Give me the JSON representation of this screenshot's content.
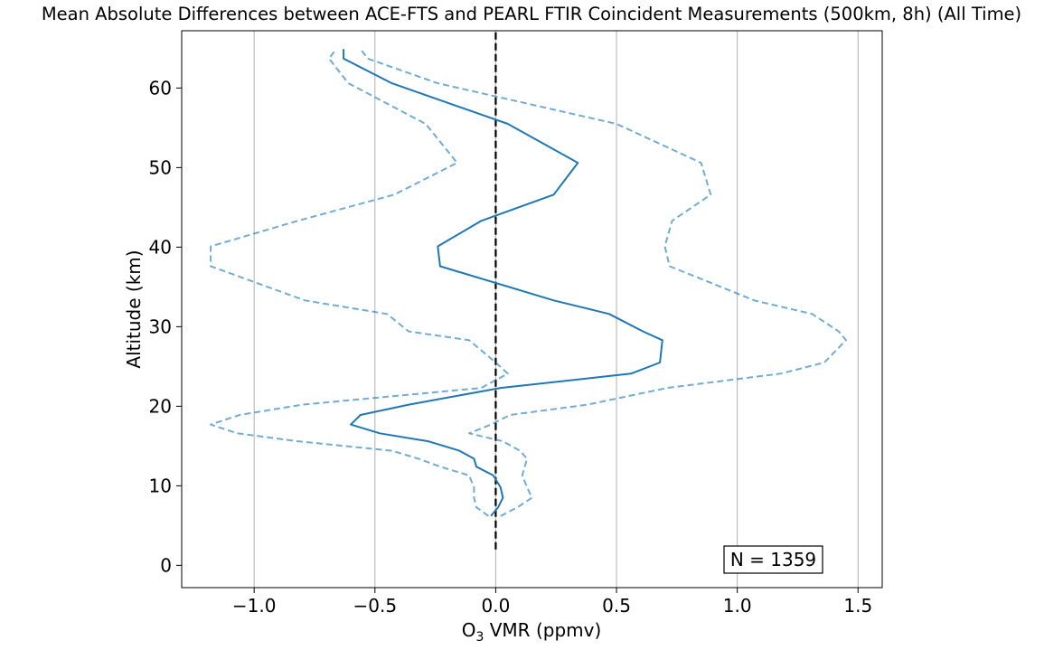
{
  "chart_data": {
    "type": "line",
    "title": "Mean Absolute Differences between ACE-FTS and PEARL FTIR Coincident Measurements (500km, 8h) (All Time)",
    "xlabel_main": "O",
    "xlabel_sub": "3",
    "xlabel_rest": " VMR (ppmv)",
    "ylabel": "Altitude (km)",
    "xlim": [
      -1.3,
      1.6
    ],
    "ylim": [
      -2.8,
      67.2
    ],
    "x_ticks": [
      -1.0,
      -0.5,
      0.0,
      0.5,
      1.0,
      1.5
    ],
    "x_tick_labels": [
      "−1.0",
      "−0.5",
      "0.0",
      "0.5",
      "1.0",
      "1.5"
    ],
    "y_ticks": [
      0,
      10,
      20,
      30,
      40,
      50,
      60
    ],
    "y_tick_labels": [
      "0",
      "10",
      "20",
      "30",
      "40",
      "50",
      "60"
    ],
    "grid": "vertical",
    "colors": {
      "mean": "#1f77b4",
      "bounds": "#1f77b4",
      "zero_line": "#000000",
      "grid": "#b0b0b0"
    },
    "annotation": "N = 1359",
    "zero_line": {
      "x": 0,
      "y": [
        2,
        67.2
      ]
    },
    "series": [
      {
        "role": "mean",
        "style": "solid",
        "x": [
          -0.02,
          0.01,
          0.03,
          0.02,
          -0.01,
          -0.08,
          -0.09,
          -0.15,
          -0.28,
          -0.48,
          -0.6,
          -0.56,
          -0.36,
          0.02,
          0.56,
          0.68,
          0.69,
          0.61,
          0.47,
          0.24,
          -0.23,
          -0.24,
          -0.06,
          0.24,
          0.34,
          0.05,
          -0.43,
          -0.63,
          -0.63
        ],
        "y": [
          6.2,
          7.3,
          8.5,
          9.8,
          11.3,
          12.4,
          13.4,
          14.4,
          15.6,
          16.6,
          17.7,
          18.9,
          20.2,
          22.3,
          24.1,
          25.5,
          28.3,
          29.4,
          31.6,
          33.3,
          37.6,
          40.1,
          43.3,
          46.6,
          50.6,
          55.5,
          60.6,
          63.7,
          64.9
        ]
      },
      {
        "role": "lower-bound",
        "style": "dashed",
        "x": [
          -0.03,
          -0.08,
          -0.09,
          -0.09,
          -0.11,
          -0.23,
          -0.32,
          -0.43,
          -0.82,
          -1.07,
          -1.18,
          -1.06,
          -0.8,
          -0.06,
          0.05,
          0.0,
          -0.11,
          -0.36,
          -0.45,
          -0.79,
          -1.18,
          -1.18,
          -0.82,
          -0.42,
          -0.16,
          -0.29,
          -0.61,
          -0.69,
          -0.66
        ],
        "y": [
          6.2,
          7.3,
          8.5,
          9.8,
          11.3,
          12.4,
          13.4,
          14.4,
          15.6,
          16.6,
          17.7,
          18.9,
          20.2,
          22.3,
          24.1,
          25.5,
          28.3,
          29.4,
          31.6,
          33.3,
          37.6,
          40.1,
          43.3,
          46.6,
          50.6,
          55.5,
          60.6,
          63.7,
          64.9
        ]
      },
      {
        "role": "upper-bound",
        "style": "dashed",
        "x": [
          0.02,
          0.09,
          0.15,
          0.13,
          0.11,
          0.12,
          0.13,
          0.1,
          0.03,
          -0.11,
          -0.02,
          0.06,
          0.38,
          0.71,
          1.18,
          1.36,
          1.45,
          1.42,
          1.31,
          1.07,
          0.72,
          0.7,
          0.73,
          0.89,
          0.85,
          0.5,
          -0.24,
          -0.53,
          -0.56
        ],
        "y": [
          6.2,
          7.3,
          8.5,
          9.8,
          11.3,
          12.4,
          13.4,
          14.4,
          15.6,
          16.6,
          17.7,
          18.9,
          20.2,
          22.3,
          24.1,
          25.5,
          28.3,
          29.4,
          31.6,
          33.3,
          37.6,
          40.1,
          43.3,
          46.6,
          50.6,
          55.5,
          60.6,
          63.7,
          64.9
        ]
      }
    ]
  }
}
